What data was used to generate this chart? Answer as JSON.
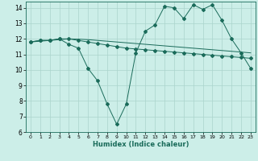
{
  "xlabel": "Humidex (Indice chaleur)",
  "bg_color": "#cceee8",
  "grid_color": "#aad4cc",
  "line_color": "#1a6b5a",
  "xlim": [
    -0.5,
    23.5
  ],
  "ylim": [
    6,
    14.4
  ],
  "xticks": [
    0,
    1,
    2,
    3,
    4,
    5,
    6,
    7,
    8,
    9,
    10,
    11,
    12,
    13,
    14,
    15,
    16,
    17,
    18,
    19,
    20,
    21,
    22,
    23
  ],
  "yticks": [
    6,
    7,
    8,
    9,
    10,
    11,
    12,
    13,
    14
  ],
  "line1_x": [
    0,
    1,
    2,
    3,
    4,
    5,
    6,
    7,
    8,
    9,
    10,
    11,
    12,
    13,
    14,
    15,
    16,
    17,
    18,
    19,
    20,
    21,
    22,
    23
  ],
  "line1_y": [
    11.8,
    11.9,
    11.9,
    12.0,
    12.0,
    11.9,
    11.8,
    11.7,
    11.6,
    11.5,
    11.4,
    11.35,
    11.3,
    11.25,
    11.2,
    11.15,
    11.1,
    11.05,
    11.0,
    10.95,
    10.9,
    10.85,
    10.8,
    10.75
  ],
  "line2_x": [
    0,
    1,
    2,
    3,
    4,
    5,
    6,
    7,
    8,
    9,
    10,
    11,
    12,
    13,
    14,
    15,
    16,
    17,
    18,
    19,
    20,
    21,
    22,
    23
  ],
  "line2_y": [
    11.8,
    11.85,
    11.9,
    11.95,
    12.0,
    11.98,
    11.95,
    11.9,
    11.85,
    11.8,
    11.75,
    11.7,
    11.65,
    11.6,
    11.55,
    11.5,
    11.45,
    11.4,
    11.35,
    11.3,
    11.25,
    11.2,
    11.15,
    11.1
  ],
  "line3_x": [
    0,
    1,
    2,
    3,
    4,
    5,
    6,
    7,
    8,
    9,
    10,
    11,
    12,
    13,
    14,
    15,
    16,
    17,
    18,
    19,
    20,
    21,
    22,
    23
  ],
  "line3_y": [
    11.8,
    11.9,
    11.9,
    12.0,
    11.65,
    11.4,
    10.1,
    9.3,
    7.8,
    6.5,
    7.8,
    11.1,
    12.5,
    12.9,
    14.1,
    14.0,
    13.3,
    14.2,
    13.9,
    14.2,
    13.2,
    12.0,
    11.1,
    10.1
  ]
}
